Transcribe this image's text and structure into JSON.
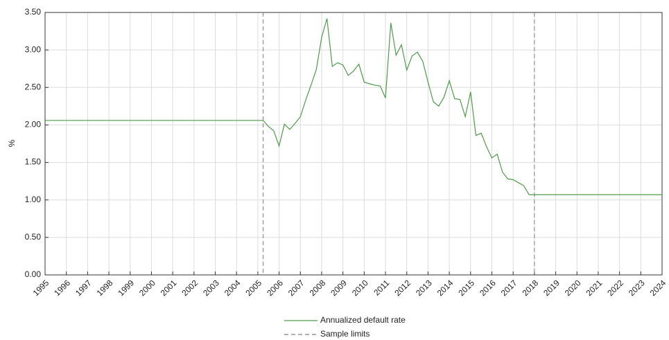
{
  "chart_data": {
    "type": "line",
    "y_label": "%",
    "xlim": [
      1995,
      2024
    ],
    "xticks": [
      1995,
      1996,
      1997,
      1998,
      1999,
      2000,
      2001,
      2002,
      2003,
      2004,
      2005,
      2006,
      2007,
      2008,
      2009,
      2010,
      2011,
      2012,
      2013,
      2014,
      2015,
      2016,
      2017,
      2018,
      2019,
      2020,
      2021,
      2022,
      2023,
      2024
    ],
    "ylim": [
      0,
      3.5
    ],
    "yticks": [
      {
        "value": 0,
        "label": "0.00"
      },
      {
        "value": 0.5,
        "label": "0.50"
      },
      {
        "value": 1,
        "label": "1.00"
      },
      {
        "value": 1.5,
        "label": "1.50"
      },
      {
        "value": 2,
        "label": "2.00"
      },
      {
        "value": 2.5,
        "label": "2.50"
      },
      {
        "value": 3,
        "label": "3.00"
      },
      {
        "value": 3.5,
        "label": "3.50"
      }
    ],
    "grid": true,
    "series": [
      {
        "name": "Annualized default rate",
        "color": "#4e9a4a",
        "x": [
          1995,
          2005.25,
          2005.5,
          2005.75,
          2006,
          2006.25,
          2006.5,
          2006.75,
          2007,
          2007.25,
          2007.5,
          2007.75,
          2008,
          2008.25,
          2008.5,
          2008.75,
          2009,
          2009.25,
          2009.5,
          2009.75,
          2010,
          2010.25,
          2010.5,
          2010.75,
          2011,
          2011.25,
          2011.5,
          2011.75,
          2012,
          2012.25,
          2012.5,
          2012.75,
          2013,
          2013.25,
          2013.5,
          2013.75,
          2014,
          2014.25,
          2014.5,
          2014.75,
          2015,
          2015.25,
          2015.5,
          2015.75,
          2016,
          2016.25,
          2016.5,
          2016.75,
          2017,
          2017.25,
          2017.5,
          2017.75,
          2018,
          2024
        ],
        "values": [
          2.06,
          2.06,
          1.98,
          1.92,
          1.72,
          2.01,
          1.94,
          2.02,
          2.11,
          2.33,
          2.53,
          2.74,
          3.17,
          3.42,
          2.78,
          2.83,
          2.8,
          2.66,
          2.72,
          2.81,
          2.57,
          2.55,
          2.53,
          2.52,
          2.36,
          3.36,
          2.93,
          3.07,
          2.73,
          2.92,
          2.97,
          2.85,
          2.57,
          2.31,
          2.25,
          2.37,
          2.59,
          2.35,
          2.34,
          2.11,
          2.44,
          1.86,
          1.89,
          1.71,
          1.56,
          1.61,
          1.37,
          1.28,
          1.27,
          1.23,
          1.19,
          1.07,
          1.07,
          1.07
        ]
      },
      {
        "name": "Sample limits",
        "color": "#808080",
        "dashed": true,
        "vertical": true,
        "x": [
          2005.25,
          2018
        ]
      }
    ]
  }
}
